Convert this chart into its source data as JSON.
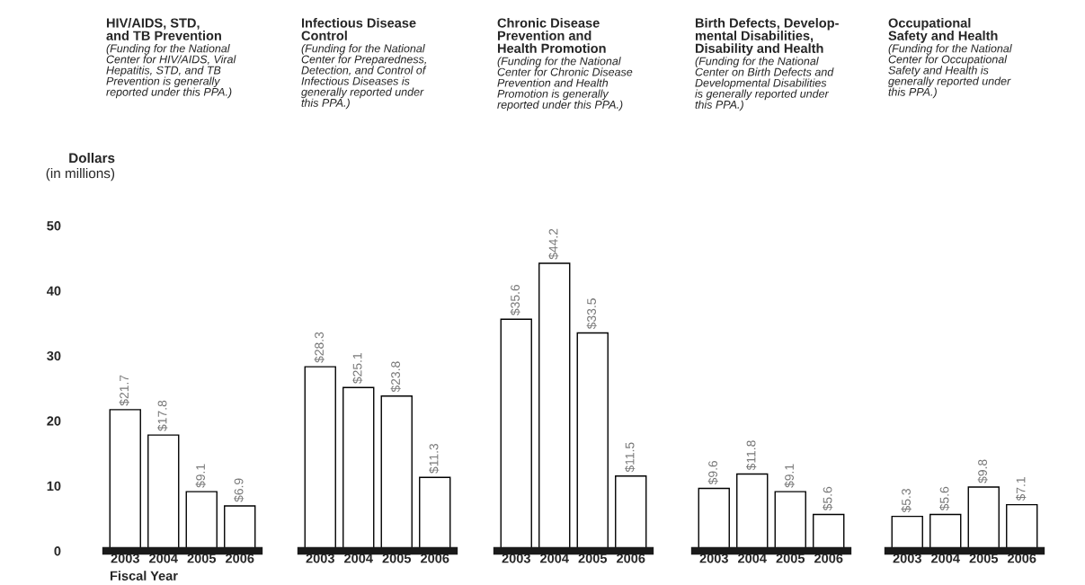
{
  "chart_data": [
    {
      "type": "bar",
      "title": "HIV/AIDS, STD,\nand TB Prevention",
      "subtitle": "(Funding for the National\nCenter for HIV/AIDS, Viral\nHepatitis, STD, and TB\nPrevention is generally\nreported under this PPA.)",
      "xlabel": "Fiscal Year",
      "ylabel": "Dollars\n(in millions)",
      "categories": [
        "2003",
        "2004",
        "2005",
        "2006"
      ],
      "values": [
        21.7,
        17.8,
        9.1,
        6.9
      ],
      "value_labels": [
        "$21.7",
        "$17.8",
        "$9.1",
        "$6.9"
      ],
      "color": "#ffffff",
      "ylim": [
        0,
        50
      ],
      "yticks": [
        0,
        10,
        20,
        30,
        40,
        50
      ],
      "grid": false,
      "legend": false
    },
    {
      "type": "bar",
      "title": "Infectious Disease\nControl",
      "subtitle": "(Funding for the National\nCenter for Preparedness,\nDetection, and Control of\nInfectious Diseases is\ngenerally reported under\nthis PPA.)",
      "categories": [
        "2003",
        "2004",
        "2005",
        "2006"
      ],
      "values": [
        28.3,
        25.1,
        23.8,
        11.3
      ],
      "value_labels": [
        "$28.3",
        "$25.1",
        "$23.8",
        "$11.3"
      ],
      "color": "#ffffff",
      "ylim": [
        0,
        50
      ],
      "tick_labels": "x",
      "grid": false,
      "legend": false
    },
    {
      "type": "bar",
      "title": "Chronic Disease\nPrevention and\nHealth Promotion",
      "subtitle": "(Funding for the National\nCenter for Chronic Disease\nPrevention and Health\nPromotion is generally\nreported under this PPA.)",
      "categories": [
        "2003",
        "2004",
        "2005",
        "2006"
      ],
      "values": [
        35.6,
        44.2,
        33.5,
        11.5
      ],
      "value_labels": [
        "$35.6",
        "$44.2",
        "$33.5",
        "$11.5"
      ],
      "color": "#ffffff",
      "ylim": [
        0,
        50
      ],
      "tick_labels": "x",
      "grid": false,
      "legend": false
    },
    {
      "type": "bar",
      "title": "Birth Defects, Develop-\nmental Disabilities,\nDisability and Health",
      "subtitle": "(Funding for the National\nCenter on Birth Defects and\nDevelopmental Disabilities\nis generally reported under\nthis PPA.)",
      "categories": [
        "2003",
        "2004",
        "2005",
        "2006"
      ],
      "values": [
        9.6,
        11.8,
        9.1,
        5.6
      ],
      "value_labels": [
        "$9.6",
        "$11.8",
        "$9.1",
        "$5.6"
      ],
      "color": "#ffffff",
      "ylim": [
        0,
        50
      ],
      "tick_labels": "x",
      "grid": false,
      "legend": false
    },
    {
      "type": "bar",
      "title": "Occupational\nSafety and Health",
      "subtitle": "(Funding for the National\nCenter for Occupational\nSafety and Health is\ngenerally reported under\nthis PPA.)",
      "categories": [
        "2003",
        "2004",
        "2005",
        "2006"
      ],
      "values": [
        5.3,
        5.6,
        9.8,
        7.1
      ],
      "value_labels": [
        "$5.3",
        "$5.6",
        "$9.8",
        "$7.1"
      ],
      "color": "#ffffff",
      "ylim": [
        0,
        50
      ],
      "tick_labels": "x",
      "grid": false,
      "legend": false
    }
  ]
}
